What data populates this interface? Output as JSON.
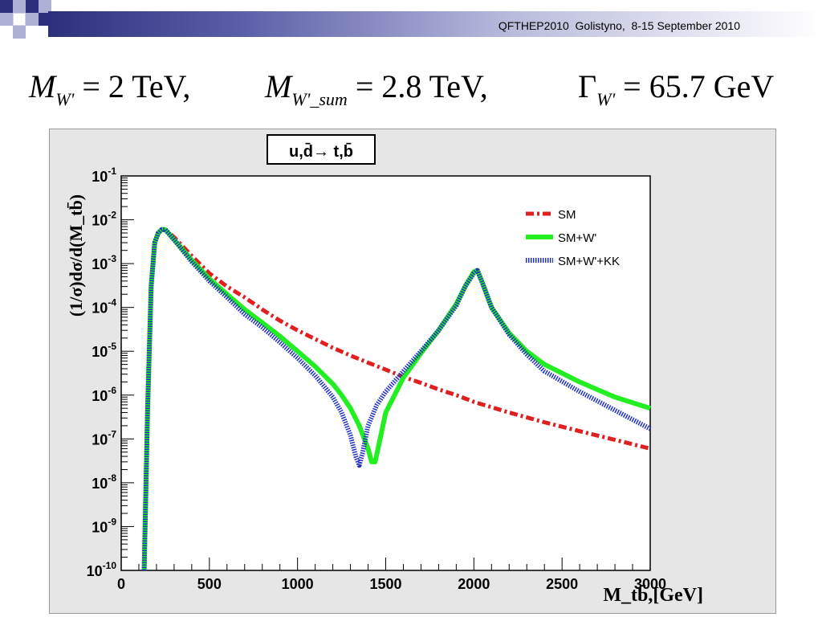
{
  "header": {
    "conference": "QFTHEP2010  Golistyno,  8-15 September 2010",
    "formula": {
      "m_w_sym": "M",
      "m_w_sub": "W'",
      "m_w_val": " = 2 TeV,",
      "m_sum_sym": "M",
      "m_sum_sub": "W'_sum",
      "m_sum_val": " = 2.8 TeV,",
      "gamma_sym": "Γ",
      "gamma_sub": "W'",
      "gamma_val": " = 65.7 GeV"
    }
  },
  "colors": {
    "sm": "#e02020",
    "smw": "#22ee22",
    "smwkk": "#2030c0",
    "frame": "#e6e6e6",
    "header_dark": "#2d2f7a"
  },
  "chart_data": {
    "type": "line",
    "title": "u,d̄→ t,b̄",
    "xlabel": "M_tb̄,[GeV]",
    "ylabel": "(1/σ)dσ/d(M_tb̄)",
    "xlim": [
      0,
      3000
    ],
    "ylim": [
      1e-10,
      0.1
    ],
    "log_y": true,
    "grid": false,
    "legend_position": "top-right",
    "x_ticks": [
      "0",
      "500",
      "1000",
      "1500",
      "2000",
      "2500",
      "3000"
    ],
    "y_ticks": [
      {
        "base": "10",
        "exp": "-10"
      },
      {
        "base": "10",
        "exp": "-9"
      },
      {
        "base": "10",
        "exp": "-8"
      },
      {
        "base": "10",
        "exp": "-7"
      },
      {
        "base": "10",
        "exp": "-6"
      },
      {
        "base": "10",
        "exp": "-5"
      },
      {
        "base": "10",
        "exp": "-4"
      },
      {
        "base": "10",
        "exp": "-3"
      },
      {
        "base": "10",
        "exp": "-2"
      },
      {
        "base": "10",
        "exp": "-1"
      }
    ],
    "series": [
      {
        "name": "SM",
        "color": "#e02020",
        "style": "dashdot",
        "x": [
          130,
          150,
          170,
          190,
          210,
          230,
          250,
          300,
          400,
          500,
          600,
          700,
          800,
          900,
          1000,
          1100,
          1200,
          1300,
          1400,
          1500,
          1600,
          1700,
          1800,
          1900,
          2000,
          2200,
          2400,
          2600,
          2800,
          3000
        ],
        "y": [
          1e-10,
          5e-07,
          0.0003,
          0.003,
          0.005,
          0.006,
          0.006,
          0.004,
          0.0015,
          0.0006,
          0.0003,
          0.00017,
          9e-05,
          5e-05,
          3e-05,
          1.9e-05,
          1.2e-05,
          8e-06,
          5.5e-06,
          3.8e-06,
          2.6e-06,
          1.9e-06,
          1.35e-06,
          1e-06,
          7e-07,
          4e-07,
          2.4e-07,
          1.5e-07,
          9.5e-08,
          6e-08
        ]
      },
      {
        "name": "SM+W'",
        "color": "#22ee22",
        "style": "solid",
        "x": [
          130,
          150,
          170,
          190,
          210,
          230,
          250,
          300,
          400,
          500,
          600,
          700,
          800,
          900,
          1000,
          1100,
          1200,
          1250,
          1300,
          1350,
          1400,
          1420,
          1440,
          1460,
          1500,
          1600,
          1700,
          1800,
          1900,
          1950,
          2000,
          2020,
          2050,
          2100,
          2200,
          2300,
          2400,
          2600,
          2800,
          3000
        ],
        "y": [
          1e-10,
          5e-07,
          0.0003,
          0.003,
          0.005,
          0.006,
          0.006,
          0.0035,
          0.0012,
          0.00045,
          0.0002,
          9e-05,
          4.5e-05,
          2.2e-05,
          1e-05,
          4.5e-06,
          1.8e-06,
          1e-06,
          5e-07,
          2e-07,
          6e-08,
          3e-08,
          3e-08,
          7e-08,
          4e-07,
          2.5e-06,
          9e-06,
          3e-05,
          0.00012,
          0.0003,
          0.00065,
          0.0007,
          0.00035,
          0.0001,
          2.6e-05,
          1e-05,
          5e-06,
          2e-06,
          9e-07,
          5e-07
        ]
      },
      {
        "name": "SM+W'+KK",
        "color": "#2030c0",
        "style": "dotted",
        "x": [
          130,
          150,
          170,
          190,
          210,
          230,
          250,
          300,
          400,
          500,
          600,
          700,
          800,
          900,
          1000,
          1100,
          1150,
          1200,
          1250,
          1300,
          1330,
          1350,
          1370,
          1400,
          1450,
          1500,
          1600,
          1700,
          1800,
          1900,
          1950,
          2000,
          2020,
          2050,
          2100,
          2200,
          2300,
          2400,
          2600,
          2800,
          3000
        ],
        "y": [
          1e-10,
          5e-07,
          0.0003,
          0.003,
          0.005,
          0.006,
          0.006,
          0.0035,
          0.0011,
          0.0004,
          0.00017,
          7e-05,
          3.5e-05,
          1.6e-05,
          7e-06,
          2.8e-06,
          1.6e-06,
          9e-07,
          4e-07,
          1.2e-07,
          4e-08,
          2.5e-08,
          5e-08,
          2e-07,
          6e-07,
          1.2e-06,
          3.5e-06,
          1e-05,
          3e-05,
          0.00011,
          0.0003,
          0.0006,
          0.0007,
          0.00035,
          0.0001,
          2.4e-05,
          8.5e-06,
          3.5e-06,
          1.2e-06,
          4.5e-07,
          1.7e-07
        ]
      }
    ]
  }
}
